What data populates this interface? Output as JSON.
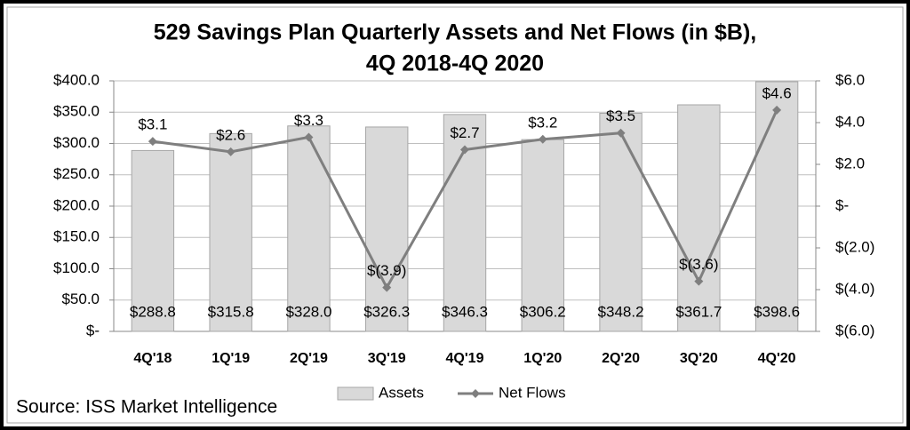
{
  "chart_data": {
    "type": "bar",
    "title": "529 Savings Plan Quarterly Assets and Net Flows (in $B),",
    "subtitle": "4Q 2018-4Q 2020",
    "source": "Source: ISS Market Intelligence",
    "categories": [
      "4Q'18",
      "1Q'19",
      "2Q'19",
      "3Q'19",
      "4Q'19",
      "1Q'20",
      "2Q'20",
      "3Q'20",
      "4Q'20"
    ],
    "series": [
      {
        "name": "Assets",
        "type": "bar",
        "color": "#d9d9d9",
        "values": [
          288.8,
          315.8,
          328.0,
          326.3,
          346.3,
          306.2,
          348.2,
          361.7,
          398.6
        ],
        "value_labels": [
          "$288.8",
          "$315.8",
          "$328.0",
          "$326.3",
          "$346.3",
          "$306.2",
          "$348.2",
          "$361.7",
          "$398.6"
        ]
      },
      {
        "name": "Net Flows",
        "type": "line",
        "axis": "y2",
        "color": "#7f7f7f",
        "values": [
          3.1,
          2.6,
          3.3,
          -3.9,
          2.7,
          3.2,
          3.5,
          -3.6,
          4.6
        ],
        "value_labels": [
          "$3.1",
          "$2.6",
          "$3.3",
          "$(3.9)",
          "$2.7",
          "$3.2",
          "$3.5",
          "$(3.6)",
          "$4.6"
        ]
      }
    ],
    "ylim": [
      0,
      400
    ],
    "yticks": [
      {
        "value": 0,
        "label": "$-"
      },
      {
        "value": 50,
        "label": "$50.0"
      },
      {
        "value": 100,
        "label": "$100.0"
      },
      {
        "value": 150,
        "label": "$150.0"
      },
      {
        "value": 200,
        "label": "$200.0"
      },
      {
        "value": 250,
        "label": "$250.0"
      },
      {
        "value": 300,
        "label": "$300.0"
      },
      {
        "value": 350,
        "label": "$350.0"
      },
      {
        "value": 400,
        "label": "$400.0"
      }
    ],
    "y2lim": [
      -6,
      6
    ],
    "y2ticks": [
      {
        "value": -6,
        "label": "$(6.0)"
      },
      {
        "value": -4,
        "label": "$(4.0)"
      },
      {
        "value": -2,
        "label": "$(2.0)"
      },
      {
        "value": 0,
        "label": "$-"
      },
      {
        "value": 2,
        "label": "$2.0"
      },
      {
        "value": 4,
        "label": "$4.0"
      },
      {
        "value": 6,
        "label": "$6.0"
      }
    ],
    "grid": true,
    "legend": "bottom"
  }
}
